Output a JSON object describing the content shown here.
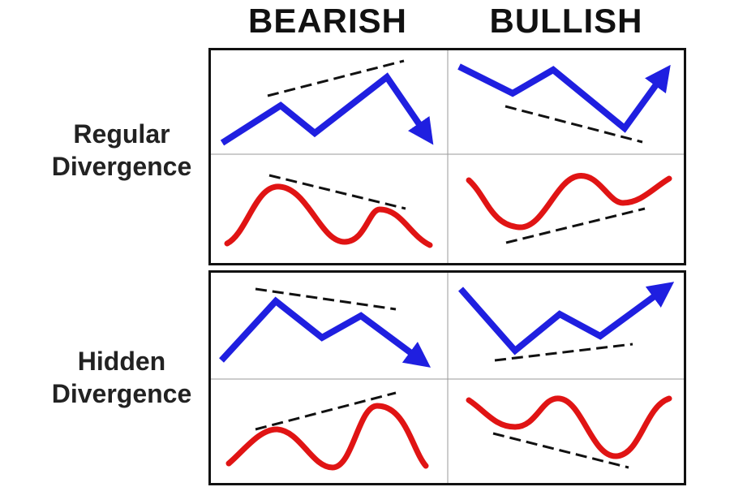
{
  "columns": {
    "bearish": "BEARISH",
    "bullish": "BULLISH"
  },
  "rows": {
    "regular": {
      "line1": "Regular",
      "line2": "Divergence"
    },
    "hidden": {
      "line1": "Hidden",
      "line2": "Divergence"
    }
  },
  "colors": {
    "price_line": "#1f1fe0",
    "indicator_line": "#e01414",
    "trend_line": "#111111",
    "grid": "#9a9a9a",
    "border": "#111111"
  }
}
